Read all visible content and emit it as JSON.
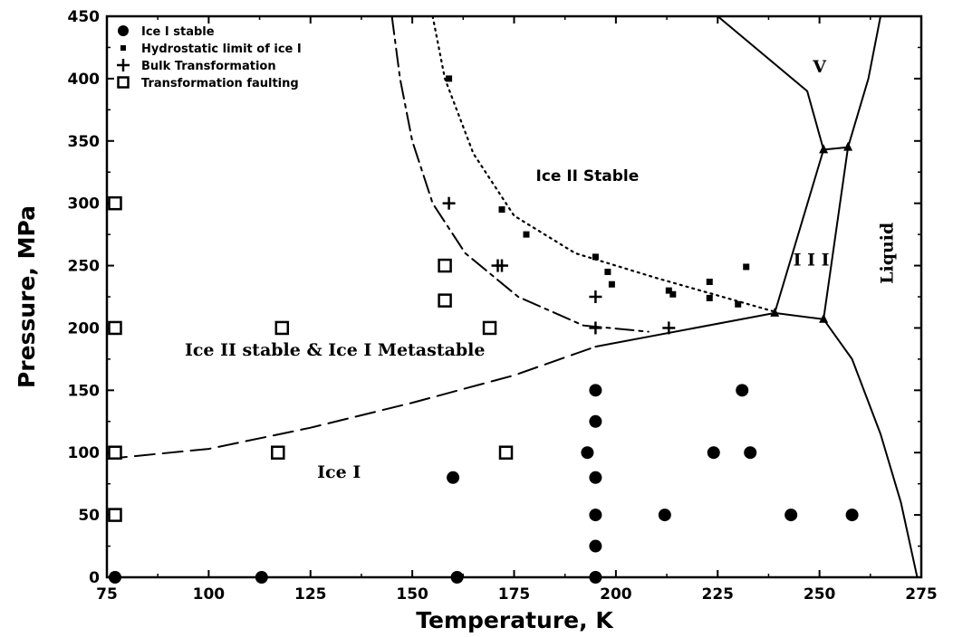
{
  "chart_data": {
    "type": "scatter",
    "title": "",
    "xlabel": "Temperature,  K",
    "ylabel": "Pressure,  MPa",
    "xlim": [
      75,
      275
    ],
    "ylim": [
      0,
      450
    ],
    "x_ticks": [
      75,
      100,
      125,
      150,
      175,
      200,
      225,
      250,
      275
    ],
    "y_ticks": [
      0,
      50,
      100,
      150,
      200,
      250,
      300,
      350,
      400,
      450
    ],
    "legend_position": "top-left",
    "legend": [
      {
        "marker": "filled-circle",
        "label": "Ice I stable"
      },
      {
        "marker": "small-square",
        "label": "Hydrostatic limit of ice I"
      },
      {
        "marker": "plus",
        "label": "Bulk Transformation"
      },
      {
        "marker": "open-square",
        "label": "Transformation faulting"
      }
    ],
    "series": [
      {
        "marker": "filled-circle",
        "points": [
          [
            77,
            0
          ],
          [
            113,
            0
          ],
          [
            161,
            0
          ],
          [
            195,
            0
          ],
          [
            195,
            25
          ],
          [
            195,
            50
          ],
          [
            212,
            50
          ],
          [
            243,
            50
          ],
          [
            258,
            50
          ],
          [
            160,
            80
          ],
          [
            195,
            80
          ],
          [
            193,
            100
          ],
          [
            224,
            100
          ],
          [
            233,
            100
          ],
          [
            195,
            125
          ],
          [
            195,
            150
          ],
          [
            231,
            150
          ]
        ]
      },
      {
        "marker": "small-square",
        "points": [
          [
            159,
            400
          ],
          [
            172,
            295
          ],
          [
            178,
            275
          ],
          [
            195,
            257
          ],
          [
            198,
            245
          ],
          [
            199,
            235
          ],
          [
            213,
            230
          ],
          [
            214,
            227
          ],
          [
            223,
            237
          ],
          [
            223,
            224
          ],
          [
            230,
            219
          ],
          [
            232,
            249
          ]
        ]
      },
      {
        "marker": "plus",
        "points": [
          [
            159,
            300
          ],
          [
            171,
            250
          ],
          [
            172,
            250
          ],
          [
            195,
            225
          ],
          [
            195,
            200
          ],
          [
            213,
            200
          ]
        ]
      },
      {
        "marker": "open-square",
        "points": [
          [
            77,
            300
          ],
          [
            77,
            200
          ],
          [
            77,
            100
          ],
          [
            77,
            50
          ],
          [
            117,
            100
          ],
          [
            118,
            200
          ],
          [
            158,
            250
          ],
          [
            158,
            222
          ],
          [
            169,
            200
          ],
          [
            173,
            100
          ]
        ]
      }
    ],
    "phase_boundaries": [
      {
        "style": "solid",
        "points": [
          [
            195,
            185
          ],
          [
            239,
            212
          ],
          [
            251,
            207
          ]
        ]
      },
      {
        "style": "solid",
        "points": [
          [
            239,
            212
          ],
          [
            251,
            343
          ]
        ]
      },
      {
        "style": "solid",
        "points": [
          [
            251,
            207
          ],
          [
            257,
            345
          ]
        ]
      },
      {
        "style": "solid",
        "points": [
          [
            251,
            343
          ],
          [
            257,
            345
          ]
        ]
      },
      {
        "style": "solid",
        "points": [
          [
            251,
            343
          ],
          [
            247,
            390
          ],
          [
            225,
            450
          ]
        ]
      },
      {
        "style": "solid",
        "points": [
          [
            257,
            345
          ],
          [
            262,
            400
          ],
          [
            265,
            450
          ]
        ]
      },
      {
        "style": "solid",
        "points": [
          [
            251,
            207
          ],
          [
            258,
            175
          ],
          [
            265,
            115
          ],
          [
            270,
            60
          ],
          [
            274,
            0
          ]
        ]
      },
      {
        "style": "dashed",
        "points": [
          [
            75,
            95
          ],
          [
            100,
            103
          ],
          [
            125,
            120
          ],
          [
            150,
            140
          ],
          [
            175,
            162
          ],
          [
            195,
            185
          ]
        ]
      },
      {
        "style": "dash-dot",
        "points": [
          [
            145,
            450
          ],
          [
            147,
            400
          ],
          [
            150,
            350
          ],
          [
            155,
            300
          ],
          [
            163,
            260
          ],
          [
            176,
            225
          ],
          [
            192,
            202
          ],
          [
            208,
            197
          ]
        ]
      },
      {
        "style": "dotted",
        "points": [
          [
            155,
            450
          ],
          [
            158,
            400
          ],
          [
            165,
            340
          ],
          [
            175,
            290
          ],
          [
            190,
            260
          ],
          [
            210,
            240
          ],
          [
            239,
            213
          ]
        ]
      }
    ],
    "region_labels": [
      {
        "text": "Ice  II  Stable",
        "x": 193,
        "y": 318,
        "font": "sans"
      },
      {
        "text": "Ice II stable & Ice I Metastable",
        "x": 131,
        "y": 178,
        "font": "serif"
      },
      {
        "text": "Ice I",
        "x": 132,
        "y": 80,
        "font": "serif"
      },
      {
        "text": "I I I",
        "x": 248,
        "y": 250,
        "font": "serif"
      },
      {
        "text": "V",
        "x": 250,
        "y": 405,
        "font": "serif"
      },
      {
        "text": "Liquid",
        "x": 268,
        "y": 260,
        "font": "serif",
        "rotate": -90
      }
    ]
  }
}
